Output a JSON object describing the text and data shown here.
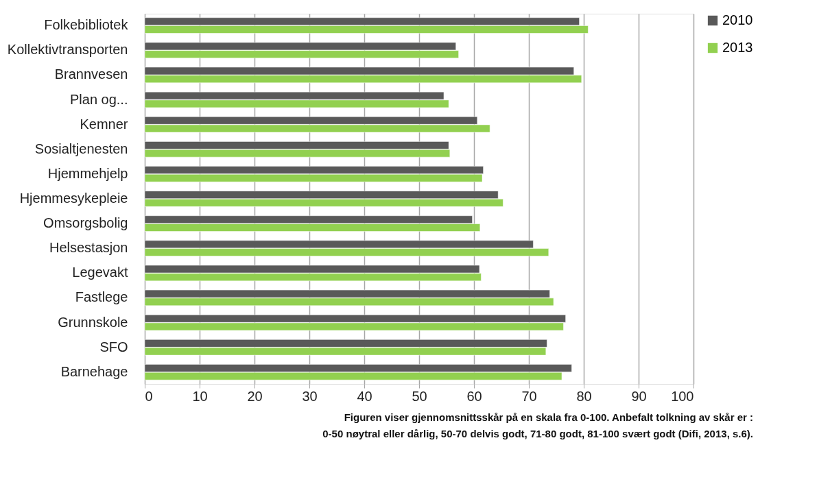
{
  "chart_data": {
    "type": "bar",
    "orientation": "horizontal",
    "categories": [
      "Folkebibliotek",
      "Kollektivtransporten",
      "Brannvesen",
      "Plan og...",
      "Kemner",
      "Sosialtjenesten",
      "Hjemmehjelp",
      "Hjemmesykepleie",
      "Omsorgsbolig",
      "Helsestasjon",
      "Legevakt",
      "Fastlege",
      "Grunnskole",
      "SFO",
      "Barnehage"
    ],
    "series": [
      {
        "name": "2010",
        "color": "#595959",
        "values": [
          79.2,
          56.7,
          78.2,
          54.5,
          60.6,
          55.4,
          61.7,
          64.4,
          59.7,
          70.8,
          61.0,
          73.8,
          76.7,
          73.3,
          77.8
        ]
      },
      {
        "name": "2013",
        "color": "#92d050",
        "values": [
          80.8,
          57.2,
          79.6,
          55.4,
          62.9,
          55.6,
          61.5,
          65.3,
          61.1,
          73.6,
          61.3,
          74.5,
          76.3,
          73.1,
          76.0
        ]
      }
    ],
    "xlim": [
      0,
      100
    ],
    "xticks": [
      0,
      10,
      20,
      30,
      40,
      50,
      60,
      70,
      80,
      90,
      100
    ],
    "grid": "x",
    "legend": "right",
    "annotations": [
      "Figuren viser gjennomsnittsskår på en skala fra 0-100. Anbefalt tolkning av skår er :",
      "0-50 nøytral eller dårlig, 50-70 delvis godt, 71-80 godt, 81-100 svært godt (Difi, 2013, s.6)."
    ]
  }
}
